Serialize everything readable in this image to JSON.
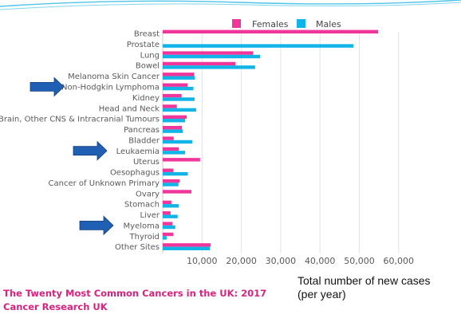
{
  "chart_data": {
    "type": "bar",
    "orientation": "horizontal",
    "categories": [
      "Breast",
      "Prostate",
      "Lung",
      "Bowel",
      "Melanoma Skin Cancer",
      "Non-Hodgkin Lymphoma",
      "Kidney",
      "Head and Neck",
      "Brain, Other CNS & Intracranial Tumours",
      "Pancreas",
      "Bladder",
      "Leukaemia",
      "Uterus",
      "Oesophagus",
      "Cancer of Unknown Primary",
      "Ovary",
      "Stomach",
      "Liver",
      "Myeloma",
      "Thyroid",
      "Other Sites"
    ],
    "series": [
      {
        "name": "Females",
        "color": "#f0359b",
        "values": [
          54800,
          0,
          23000,
          18500,
          8000,
          6300,
          4800,
          3600,
          6100,
          4900,
          2800,
          4100,
          9500,
          2700,
          4300,
          7300,
          2200,
          2000,
          2500,
          2700,
          12200
        ]
      },
      {
        "name": "Males",
        "color": "#10b4e6",
        "values": [
          0,
          48500,
          24800,
          23500,
          8200,
          7800,
          8100,
          8500,
          5700,
          5100,
          7500,
          5700,
          0,
          6400,
          4000,
          0,
          4100,
          3800,
          3200,
          1000,
          12000
        ]
      }
    ],
    "xlim": [
      0,
      70000
    ],
    "xticks": [
      "10,000",
      "20,000",
      "30,000",
      "40,000",
      "50,000",
      "60,000"
    ],
    "xtick_values": [
      10000,
      20000,
      30000,
      40000,
      50000,
      60000
    ],
    "xlabel": "Total number of new cases (per year)",
    "legend_position": "top",
    "grid": true,
    "highlighted_categories": [
      "Non-Hodgkin Lymphoma",
      "Leukaemia",
      "Myeloma"
    ],
    "arrow_color": "#1f5fb4"
  },
  "xlabel_lines": [
    "Total number of new cases",
    "(per year)"
  ],
  "footer": {
    "line1": "The Twenty Most Common Cancers in the UK: 2017",
    "line2": "Cancer Research UK"
  }
}
